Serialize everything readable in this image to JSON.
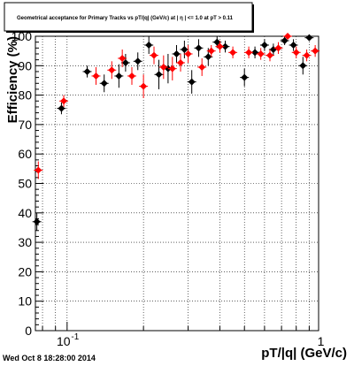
{
  "chart_data": {
    "type": "scatter",
    "title": "Geometrical acceptance for Primary Tracks vs pT/|q| (GeV/c) at |  η  | <= 1.0 at pT > 0.11",
    "xlabel": "pT/|q| (GeV/c)",
    "ylabel": "Efficiency (%)",
    "x_scale": "log",
    "xlim": [
      0.075,
      0.98
    ],
    "ylim": [
      0,
      100
    ],
    "grid": true,
    "x_ticks": [
      {
        "value": 0.1,
        "label": "10",
        "exp": "-1"
      },
      {
        "value": 1,
        "label": "1",
        "exp": ""
      }
    ],
    "y_ticks": [
      0,
      10,
      20,
      30,
      40,
      50,
      60,
      70,
      80,
      90,
      100
    ],
    "series": [
      {
        "color": "#000000",
        "points": [
          {
            "x": 0.076,
            "y": 37,
            "err": 3
          },
          {
            "x": 0.095,
            "y": 75.5,
            "err": 2
          },
          {
            "x": 0.12,
            "y": 88,
            "err": 2
          },
          {
            "x": 0.14,
            "y": 84,
            "err": 3
          },
          {
            "x": 0.16,
            "y": 86.5,
            "err": 4
          },
          {
            "x": 0.17,
            "y": 91,
            "err": 3
          },
          {
            "x": 0.19,
            "y": 91.5,
            "err": 3
          },
          {
            "x": 0.21,
            "y": 97,
            "err": 3
          },
          {
            "x": 0.23,
            "y": 87,
            "err": 5
          },
          {
            "x": 0.25,
            "y": 89,
            "err": 5
          },
          {
            "x": 0.27,
            "y": 94,
            "err": 3
          },
          {
            "x": 0.29,
            "y": 95.5,
            "err": 3
          },
          {
            "x": 0.31,
            "y": 84.5,
            "err": 4
          },
          {
            "x": 0.33,
            "y": 96,
            "err": 3
          },
          {
            "x": 0.36,
            "y": 93,
            "err": 3
          },
          {
            "x": 0.39,
            "y": 98,
            "err": 2
          },
          {
            "x": 0.42,
            "y": 96.5,
            "err": 2
          },
          {
            "x": 0.5,
            "y": 86,
            "err": 3
          },
          {
            "x": 0.55,
            "y": 94.5,
            "err": 2
          },
          {
            "x": 0.6,
            "y": 97,
            "err": 2
          },
          {
            "x": 0.65,
            "y": 95.5,
            "err": 2
          },
          {
            "x": 0.72,
            "y": 98.5,
            "err": 1.5
          },
          {
            "x": 0.78,
            "y": 97,
            "err": 2
          },
          {
            "x": 0.85,
            "y": 90,
            "err": 3
          },
          {
            "x": 0.9,
            "y": 99.5,
            "err": 1
          }
        ]
      },
      {
        "color": "#ff0000",
        "points": [
          {
            "x": 0.077,
            "y": 54.5,
            "err": 3
          },
          {
            "x": 0.097,
            "y": 78,
            "err": 2
          },
          {
            "x": 0.13,
            "y": 86.5,
            "err": 3
          },
          {
            "x": 0.15,
            "y": 88.5,
            "err": 3
          },
          {
            "x": 0.165,
            "y": 92.5,
            "err": 3
          },
          {
            "x": 0.18,
            "y": 86.5,
            "err": 3
          },
          {
            "x": 0.2,
            "y": 83,
            "err": 4
          },
          {
            "x": 0.22,
            "y": 93.5,
            "err": 3
          },
          {
            "x": 0.24,
            "y": 89.5,
            "err": 4
          },
          {
            "x": 0.26,
            "y": 89,
            "err": 4
          },
          {
            "x": 0.28,
            "y": 91,
            "err": 3
          },
          {
            "x": 0.3,
            "y": 94,
            "err": 3
          },
          {
            "x": 0.34,
            "y": 89.5,
            "err": 3
          },
          {
            "x": 0.37,
            "y": 95,
            "err": 2
          },
          {
            "x": 0.4,
            "y": 96.5,
            "err": 2
          },
          {
            "x": 0.45,
            "y": 94.5,
            "err": 2
          },
          {
            "x": 0.52,
            "y": 94.5,
            "err": 2
          },
          {
            "x": 0.58,
            "y": 94,
            "err": 2
          },
          {
            "x": 0.63,
            "y": 93.5,
            "err": 2
          },
          {
            "x": 0.68,
            "y": 96,
            "err": 2
          },
          {
            "x": 0.74,
            "y": 100,
            "err": 1
          },
          {
            "x": 0.8,
            "y": 94.5,
            "err": 2
          },
          {
            "x": 0.88,
            "y": 93.5,
            "err": 2
          },
          {
            "x": 0.95,
            "y": 95,
            "err": 2
          }
        ]
      }
    ]
  },
  "footer": {
    "timestamp": "Wed Oct  8 18:28:00 2014"
  },
  "colors": {
    "frame": "#000000",
    "grid": "#000000",
    "background": "#ffffff"
  }
}
